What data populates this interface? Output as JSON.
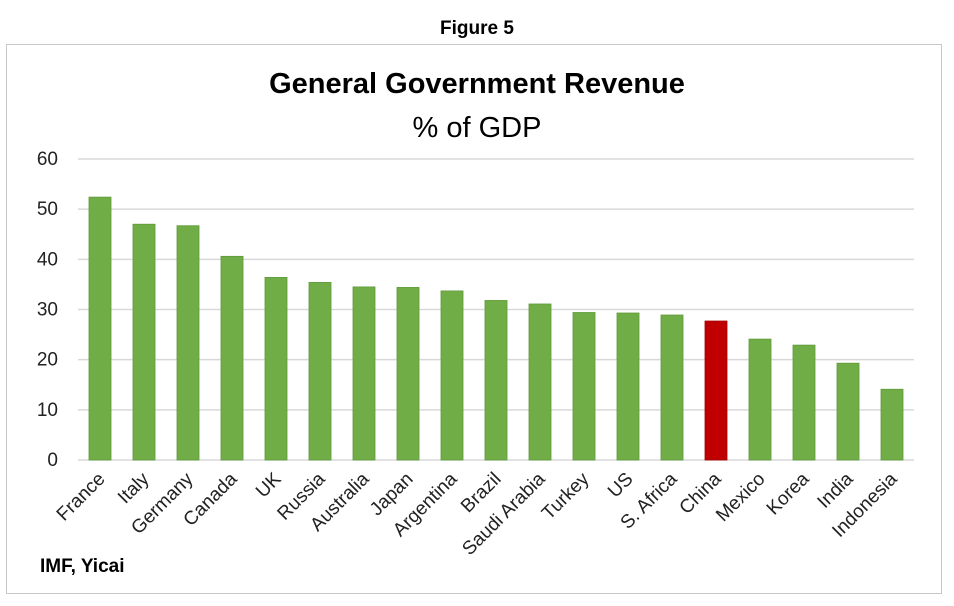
{
  "figure_label": "Figure 5",
  "source": "IMF, Yicai",
  "colors": {
    "default_bar": "#70ad47",
    "highlight_bar": "#c00000",
    "grid": "#d9d9d9"
  },
  "chart_data": {
    "type": "bar",
    "title": "General Government Revenue",
    "subtitle": "% of GDP",
    "categories": [
      "France",
      "Italy",
      "Germany",
      "Canada",
      "UK",
      "Russia",
      "Australia",
      "Japan",
      "Argentina",
      "Brazil",
      "Saudi Arabia",
      "Turkey",
      "US",
      "S. Africa",
      "China",
      "Mexico",
      "Korea",
      "India",
      "Indonesia"
    ],
    "values": [
      52.4,
      47.0,
      46.7,
      40.6,
      36.4,
      35.4,
      34.5,
      34.4,
      33.7,
      31.8,
      31.1,
      29.4,
      29.3,
      28.9,
      27.7,
      24.1,
      22.9,
      19.3,
      14.1
    ],
    "highlight": "China",
    "ylim": [
      0,
      60
    ],
    "yticks": [
      0,
      10,
      20,
      30,
      40,
      50,
      60
    ],
    "grid": true,
    "legend": false
  }
}
